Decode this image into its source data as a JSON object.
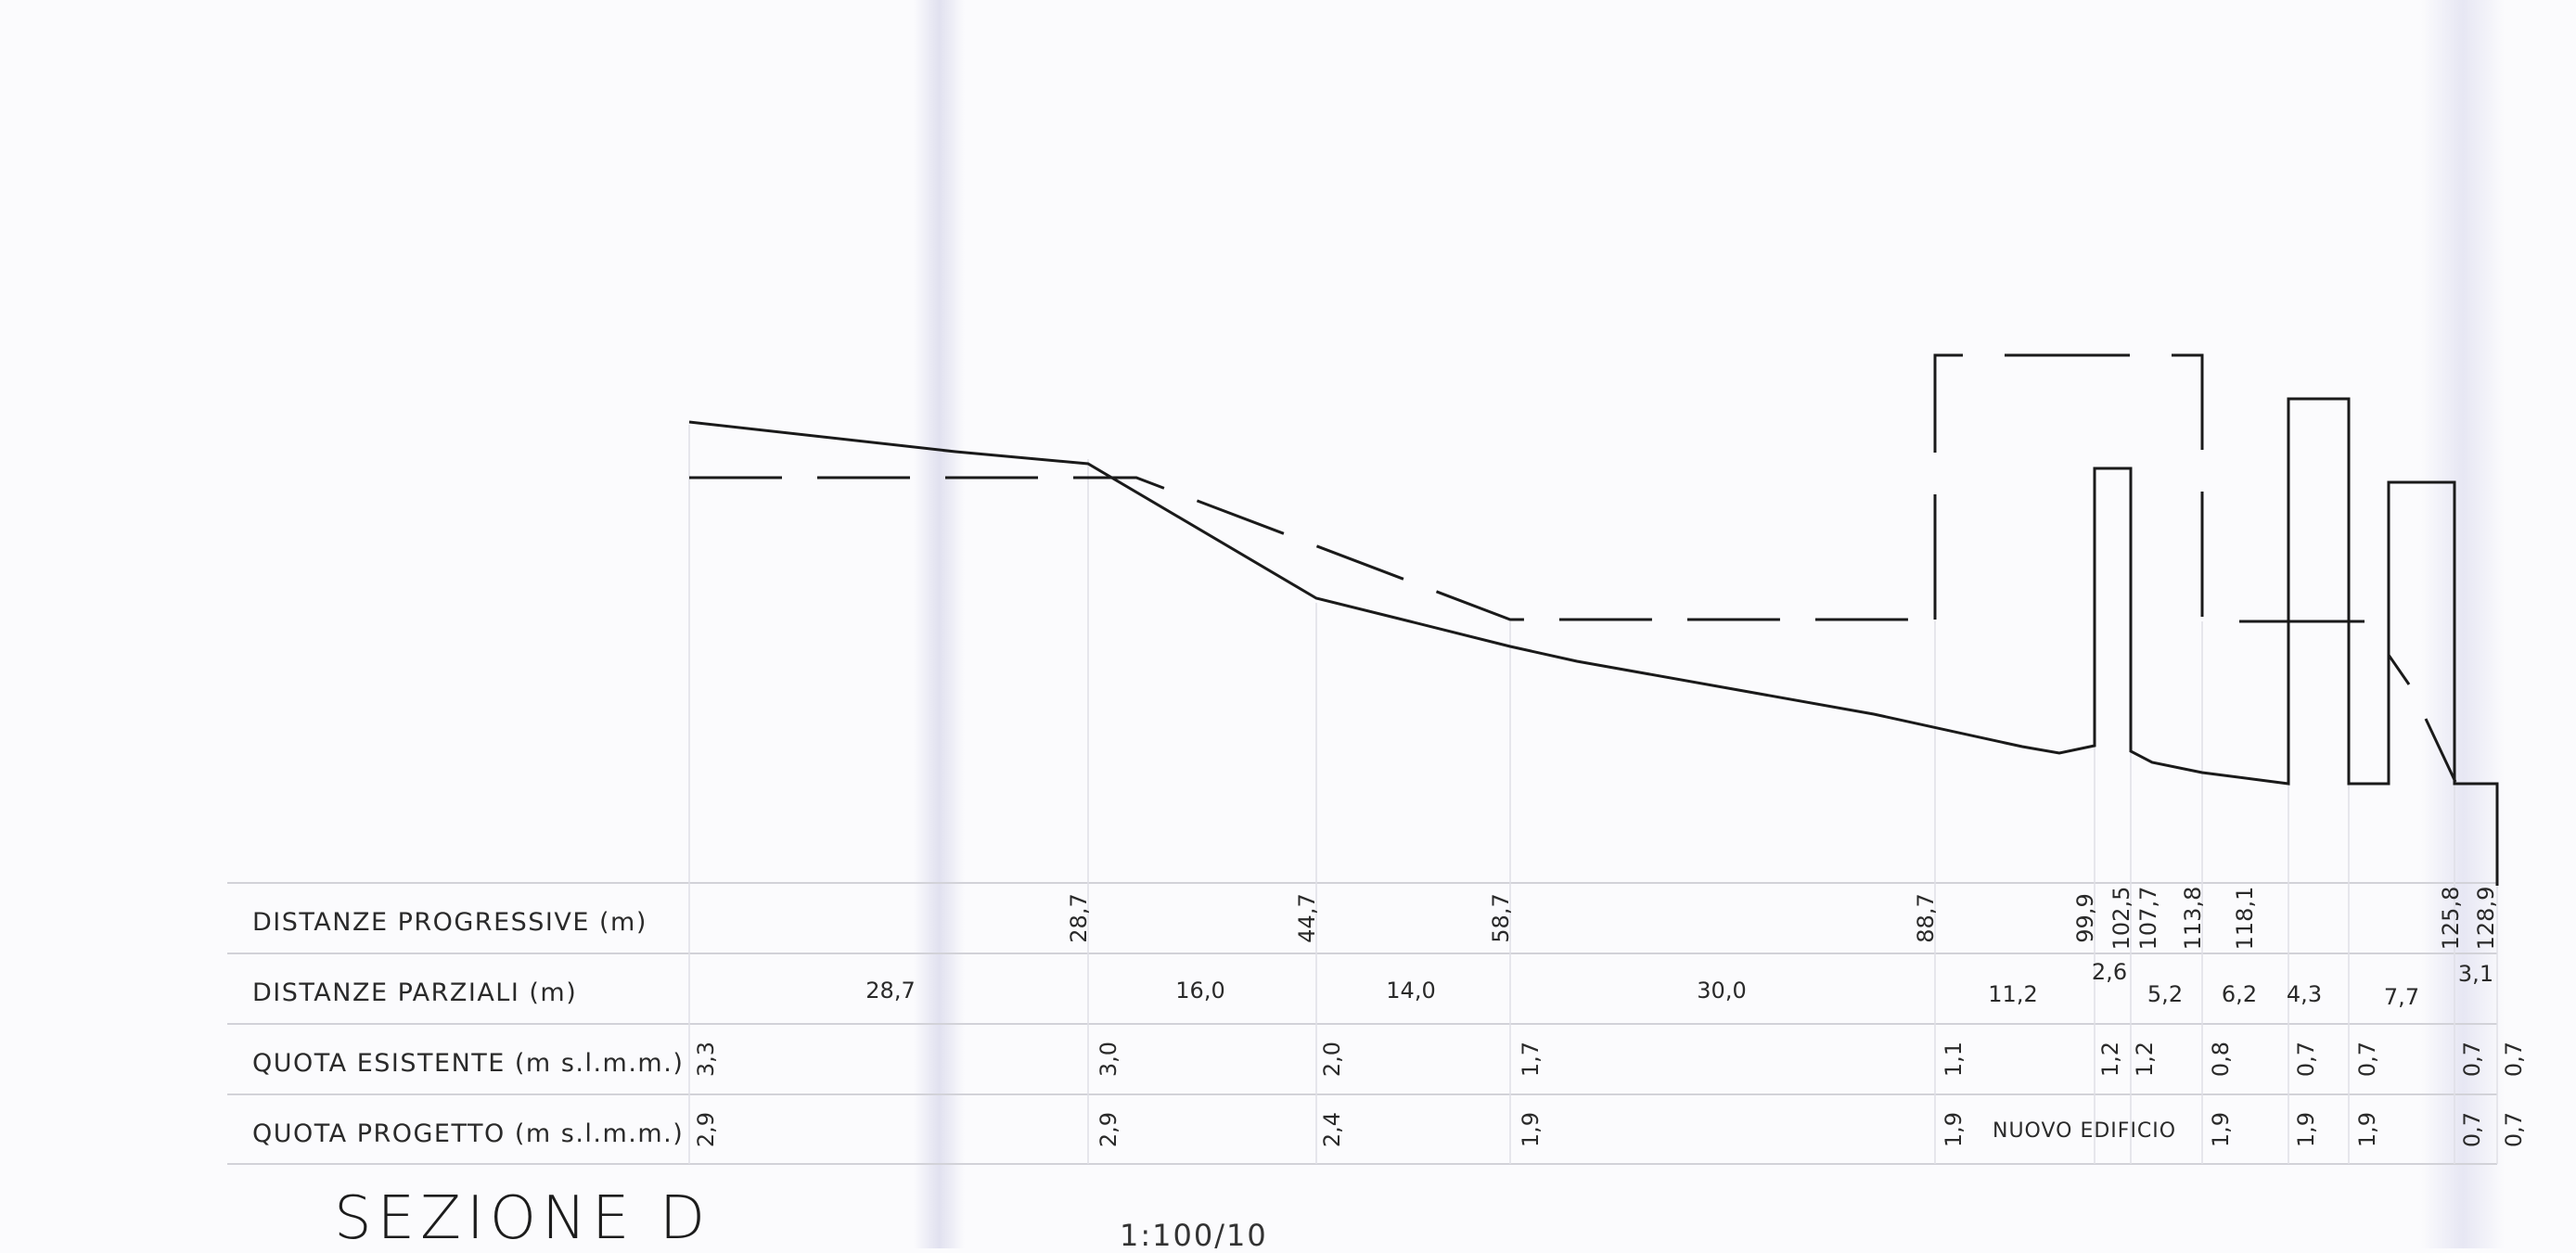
{
  "section": {
    "title": "SEZIONE D",
    "scale": "1:100/10",
    "building_note": "NUOVO EDIFICIO"
  },
  "table": {
    "rows": [
      "DISTANZE PROGRESSIVE (m)",
      "DISTANZE PARZIALI (m)",
      "QUOTA ESISTENTE (m s.l.m.m.)",
      "QUOTA PROGETTO (m s.l.m.m.)"
    ],
    "progressive": [
      {
        "id": "p1",
        "text": "28,7"
      },
      {
        "id": "p2",
        "text": "44,7"
      },
      {
        "id": "p3",
        "text": "58,7"
      },
      {
        "id": "p4",
        "text": "88,7"
      },
      {
        "id": "p5",
        "text": "99,9"
      },
      {
        "id": "p6",
        "text": "102,5"
      },
      {
        "id": "p7",
        "text": "107,7"
      },
      {
        "id": "p8",
        "text": "113,8"
      },
      {
        "id": "p9",
        "text": "118,1"
      },
      {
        "id": "p10",
        "text": "125,8"
      },
      {
        "id": "p11",
        "text": "128,9"
      }
    ],
    "partial": [
      {
        "id": "d1",
        "text": "28,7"
      },
      {
        "id": "d2",
        "text": "16,0"
      },
      {
        "id": "d3",
        "text": "14,0"
      },
      {
        "id": "d4",
        "text": "30,0"
      },
      {
        "id": "d5",
        "text": "11,2"
      },
      {
        "id": "d6",
        "text": "2,6"
      },
      {
        "id": "d7",
        "text": "5,2"
      },
      {
        "id": "d8",
        "text": "6,2"
      },
      {
        "id": "d9",
        "text": "4,3"
      },
      {
        "id": "d10",
        "text": "7,7"
      },
      {
        "id": "d11",
        "text": "3,1"
      }
    ],
    "existing": [
      {
        "id": "e1",
        "text": "3,3"
      },
      {
        "id": "e2",
        "text": "3,0"
      },
      {
        "id": "e3",
        "text": "2,0"
      },
      {
        "id": "e4",
        "text": "1,7"
      },
      {
        "id": "e5",
        "text": "1,1"
      },
      {
        "id": "e6",
        "text": "1,2"
      },
      {
        "id": "e7",
        "text": "1,2"
      },
      {
        "id": "e8",
        "text": "0,8"
      },
      {
        "id": "e9",
        "text": "0,7"
      },
      {
        "id": "e10",
        "text": "0,7"
      },
      {
        "id": "e11",
        "text": "0,7"
      },
      {
        "id": "e12",
        "text": "0,7"
      }
    ],
    "project": [
      {
        "id": "q1",
        "text": "2,9"
      },
      {
        "id": "q2",
        "text": "2,9"
      },
      {
        "id": "q3",
        "text": "2,4"
      },
      {
        "id": "q4",
        "text": "1,9"
      },
      {
        "id": "q5",
        "text": "1,9"
      },
      {
        "id": "q6",
        "text": "1,9"
      },
      {
        "id": "q7",
        "text": "1,9"
      },
      {
        "id": "q8",
        "text": "1,9"
      },
      {
        "id": "q9",
        "text": "0,7"
      },
      {
        "id": "q10",
        "text": "0,7"
      }
    ]
  },
  "colors": {
    "ink": "#1a1a1a",
    "grid": "#d4d4da",
    "paper": "#fbfbfd"
  }
}
